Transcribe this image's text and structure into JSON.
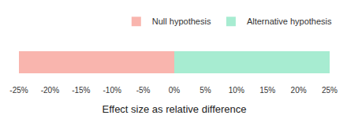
{
  "chart_data": {
    "type": "bar",
    "orientation": "horizontal",
    "stacked": true,
    "categories": [
      null
    ],
    "series": [
      {
        "name": "Null hypothesis",
        "color": "#f9b5ae",
        "values": [
          -25
        ]
      },
      {
        "name": "Alternative hypothesis",
        "color": "#a7ecd1",
        "values": [
          25
        ]
      }
    ],
    "xlabel": "Effect size as relative difference",
    "xlim": [
      -25,
      25
    ],
    "xticks": [
      {
        "value": -25,
        "label": "-25%"
      },
      {
        "value": -20,
        "label": "-20%"
      },
      {
        "value": -15,
        "label": "-15%"
      },
      {
        "value": -10,
        "label": "-10%"
      },
      {
        "value": -5,
        "label": "-5%"
      },
      {
        "value": 0,
        "label": "0%"
      },
      {
        "value": 5,
        "label": "5%"
      },
      {
        "value": 10,
        "label": "10%"
      },
      {
        "value": 15,
        "label": "15%"
      },
      {
        "value": 20,
        "label": "20%"
      },
      {
        "value": 25,
        "label": "25%"
      }
    ],
    "grid": true,
    "legend": "top right",
    "tick_labels": "x"
  }
}
